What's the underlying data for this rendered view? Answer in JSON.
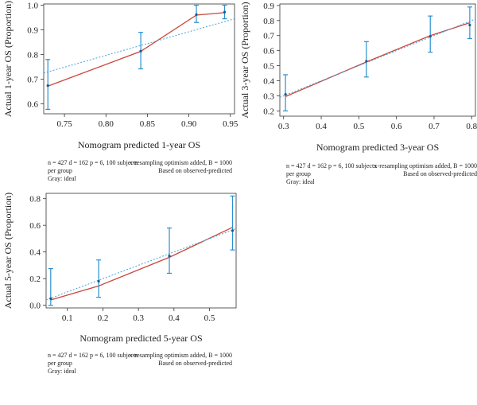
{
  "colors": {
    "apparent": "#c8473a",
    "ideal": "#4aa3d6",
    "errorbar": "#2a8fd0",
    "point": "#1b5a8a"
  },
  "chart_data": [
    {
      "type": "line",
      "panel": "1-year",
      "xlabel": "Nomogram predicted 1-year OS",
      "ylabel": "Actual 1-year OS (Proportion)",
      "xlim": [
        0.725,
        0.955
      ],
      "ylim": [
        0.56,
        1.005
      ],
      "xticks": [
        0.75,
        0.8,
        0.85,
        0.9,
        0.95
      ],
      "xtick_labels": [
        "0.75",
        "0.80",
        "0.85",
        "0.90",
        "0.95"
      ],
      "yticks": [
        0.6,
        0.7,
        0.8,
        0.9,
        1.0
      ],
      "ytick_labels": [
        "0.6",
        "0.7",
        "0.8",
        "0.9",
        "1.0"
      ],
      "series": [
        {
          "role": "apparent",
          "x": [
            0.73,
            0.842,
            0.909,
            0.943
          ],
          "y": [
            0.672,
            0.813,
            0.96,
            0.97
          ]
        },
        {
          "role": "ideal",
          "x": [
            0.725,
            0.955
          ],
          "y": [
            0.725,
            0.945
          ]
        }
      ],
      "points": [
        {
          "x": 0.73,
          "y": 0.674,
          "lo": 0.578,
          "hi": 0.78
        },
        {
          "x": 0.842,
          "y": 0.814,
          "lo": 0.742,
          "hi": 0.89
        },
        {
          "x": 0.909,
          "y": 0.962,
          "lo": 0.93,
          "hi": 1.0
        },
        {
          "x": 0.943,
          "y": 0.972,
          "lo": 0.945,
          "hi": 1.0
        }
      ],
      "footnote": {
        "left_lines": [
          "n = 427 d = 162 p = 6, 100 subjects",
          "per group",
          "Gray: ideal"
        ],
        "right_lines": [
          "x-resampling optimism added, B = 1000",
          "Based on observed-predicted"
        ]
      }
    },
    {
      "type": "line",
      "panel": "3-year",
      "xlabel": "Nomogram predicted 3-year OS",
      "ylabel": "Actual 3-year OS (Proportion)",
      "xlim": [
        0.29,
        0.81
      ],
      "ylim": [
        0.165,
        0.91
      ],
      "xticks": [
        0.3,
        0.4,
        0.5,
        0.6,
        0.7,
        0.8
      ],
      "xtick_labels": [
        "0.3",
        "0.4",
        "0.5",
        "0.6",
        "0.7",
        "0.8"
      ],
      "yticks": [
        0.2,
        0.3,
        0.4,
        0.5,
        0.6,
        0.7,
        0.8,
        0.9
      ],
      "ytick_labels": [
        "0.2",
        "0.3",
        "0.4",
        "0.5",
        "0.6",
        "0.7",
        "0.8",
        "0.9"
      ],
      "series": [
        {
          "role": "apparent",
          "x": [
            0.305,
            0.52,
            0.69,
            0.795
          ],
          "y": [
            0.295,
            0.525,
            0.7,
            0.785
          ]
        },
        {
          "role": "ideal",
          "x": [
            0.29,
            0.81
          ],
          "y": [
            0.29,
            0.81
          ]
        }
      ],
      "points": [
        {
          "x": 0.305,
          "y": 0.31,
          "lo": 0.2,
          "hi": 0.44
        },
        {
          "x": 0.52,
          "y": 0.53,
          "lo": 0.425,
          "hi": 0.66
        },
        {
          "x": 0.69,
          "y": 0.695,
          "lo": 0.59,
          "hi": 0.83
        },
        {
          "x": 0.795,
          "y": 0.77,
          "lo": 0.68,
          "hi": 0.89
        }
      ],
      "footnote": {
        "left_lines": [
          "n = 427 d = 162 p = 6, 100 subjects",
          "per group",
          "Gray: ideal"
        ],
        "right_lines": [
          "x-resampling optimism added, B = 1000",
          "Based on observed-predicted"
        ]
      }
    },
    {
      "type": "line",
      "panel": "5-year",
      "xlabel": "Nomogram predicted 5-year OS",
      "ylabel": "Actual 5-year OS (Proportion)",
      "xlim": [
        0.04,
        0.575
      ],
      "ylim": [
        -0.02,
        0.84
      ],
      "xticks": [
        0.1,
        0.2,
        0.3,
        0.4,
        0.5
      ],
      "xtick_labels": [
        "0.1",
        "0.2",
        "0.3",
        "0.4",
        "0.5"
      ],
      "yticks": [
        0.0,
        0.2,
        0.4,
        0.6,
        0.8
      ],
      "ytick_labels": [
        "0.0",
        "0.2",
        "0.4",
        "0.6",
        "0.8"
      ],
      "series": [
        {
          "role": "apparent",
          "x": [
            0.053,
            0.188,
            0.387,
            0.565
          ],
          "y": [
            0.04,
            0.145,
            0.36,
            0.585
          ]
        },
        {
          "role": "ideal",
          "x": [
            0.04,
            0.575
          ],
          "y": [
            0.04,
            0.575
          ]
        }
      ],
      "points": [
        {
          "x": 0.053,
          "y": 0.05,
          "lo": 0.0,
          "hi": 0.275
        },
        {
          "x": 0.188,
          "y": 0.18,
          "lo": 0.06,
          "hi": 0.34
        },
        {
          "x": 0.387,
          "y": 0.37,
          "lo": 0.24,
          "hi": 0.58
        },
        {
          "x": 0.565,
          "y": 0.56,
          "lo": 0.415,
          "hi": 0.82
        }
      ],
      "footnote": {
        "left_lines": [
          "n = 427 d = 162 p = 6, 100 subjects",
          "per group",
          "Gray: ideal"
        ],
        "right_lines": [
          "x-resampling optimism added, B = 1000",
          "Based on observed-predicted"
        ]
      }
    }
  ]
}
